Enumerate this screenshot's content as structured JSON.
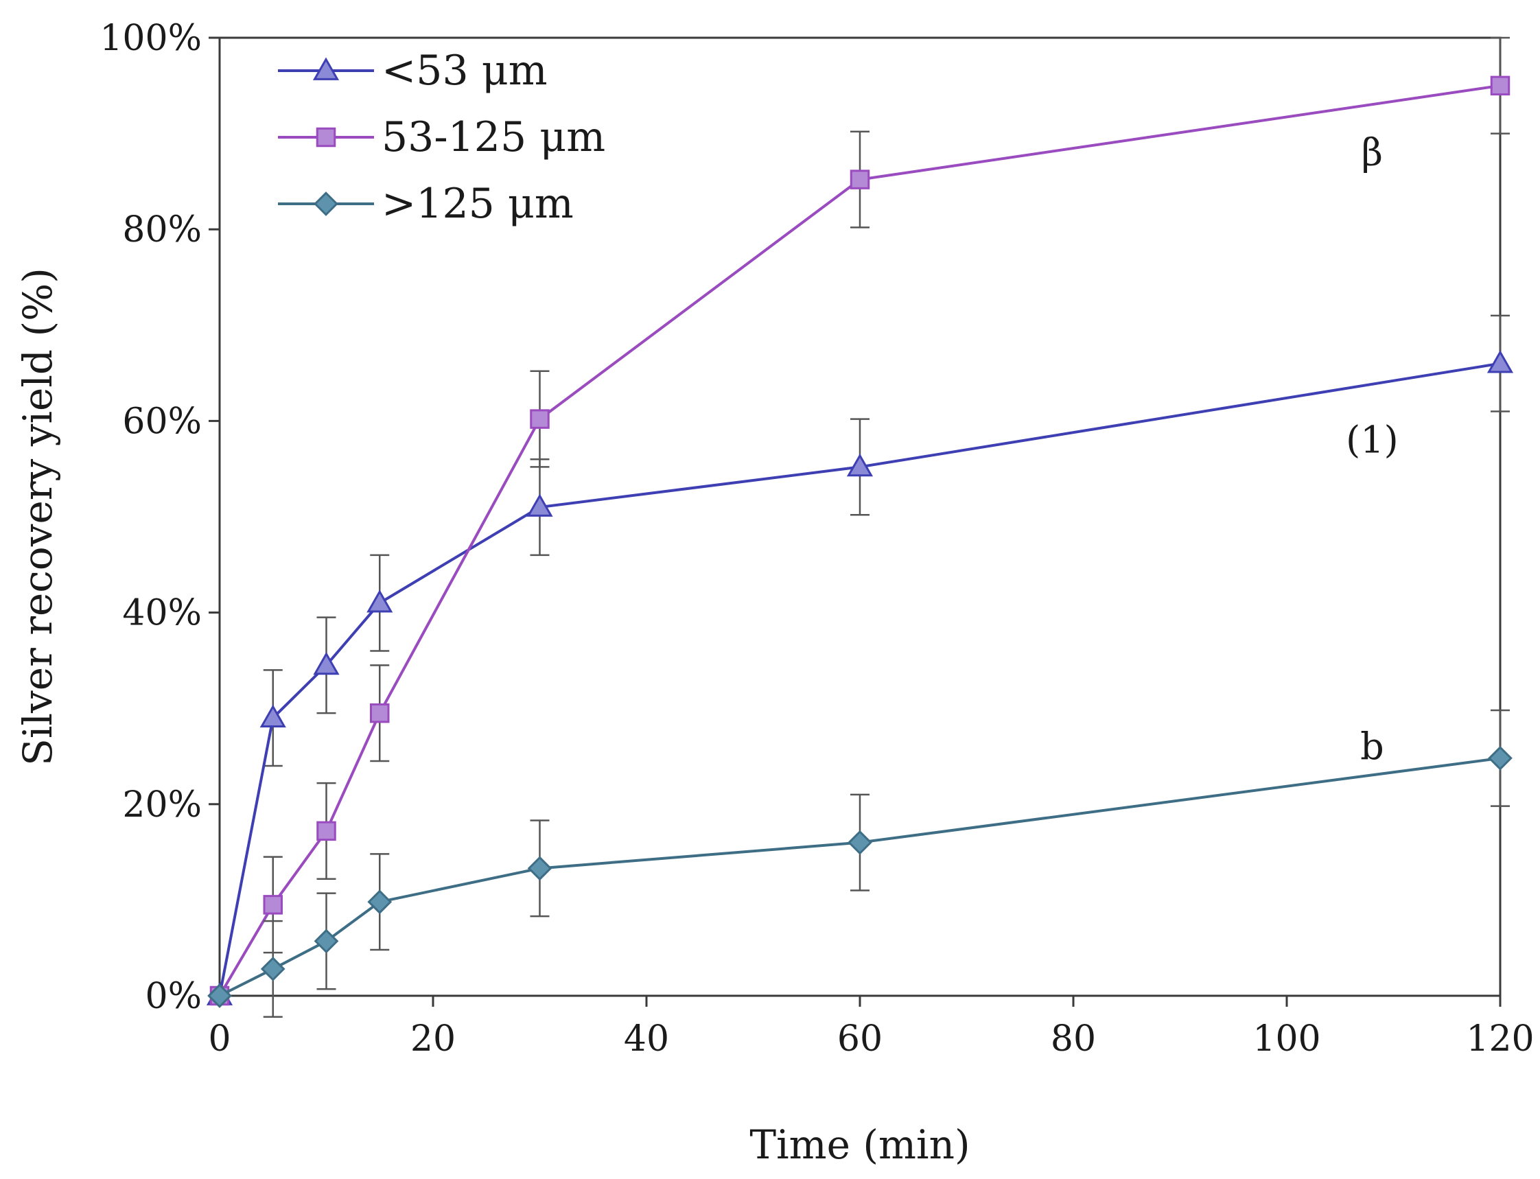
{
  "chart_data": {
    "type": "line",
    "title": "",
    "xlabel": "Time (min)",
    "ylabel": "Silver recovery yield (%)",
    "xlim": [
      0,
      120
    ],
    "ylim": [
      0,
      100
    ],
    "x_ticks": [
      0,
      20,
      40,
      60,
      80,
      100,
      120
    ],
    "x_tick_labels": [
      "0",
      "20",
      "40",
      "60",
      "80",
      "100",
      "120"
    ],
    "y_ticks": [
      0,
      20,
      40,
      60,
      80,
      100
    ],
    "y_tick_labels": [
      "0%",
      "20%",
      "40%",
      "60%",
      "80%",
      "100%"
    ],
    "grid": false,
    "legend_position": "top-left",
    "series": [
      {
        "name": "<53 μm",
        "marker": "triangle",
        "color": "#3f3fb4",
        "marker_fill": "#8a8ad6",
        "x": [
          0,
          5,
          10,
          15,
          30,
          60,
          120
        ],
        "values": [
          0,
          29,
          34.5,
          41,
          51,
          55.2,
          66
        ],
        "error": [
          0,
          5,
          5,
          5,
          5,
          5,
          5
        ]
      },
      {
        "name": "53-125 μm",
        "marker": "square",
        "color": "#9a4bbf",
        "marker_fill": "#b48ad6",
        "x": [
          0,
          5,
          10,
          15,
          30,
          60,
          120
        ],
        "values": [
          0,
          9.5,
          17.2,
          29.5,
          60.2,
          85.2,
          95
        ],
        "error": [
          0,
          5,
          5,
          5,
          5,
          5,
          5
        ]
      },
      {
        "name": ">125 μm",
        "marker": "diamond",
        "color": "#3e6e86",
        "marker_fill": "#5d93ad",
        "x": [
          0,
          5,
          10,
          15,
          30,
          60,
          120
        ],
        "values": [
          0,
          2.8,
          5.7,
          9.8,
          13.3,
          16,
          24.8
        ],
        "error": [
          0,
          5,
          5,
          5,
          5,
          5,
          5
        ]
      }
    ],
    "annotations": [
      {
        "text": "β",
        "x": 108,
        "y": 88
      },
      {
        "text": "(1)",
        "x": 108,
        "y": 58
      },
      {
        "text": "b",
        "x": 108,
        "y": 26
      }
    ]
  }
}
